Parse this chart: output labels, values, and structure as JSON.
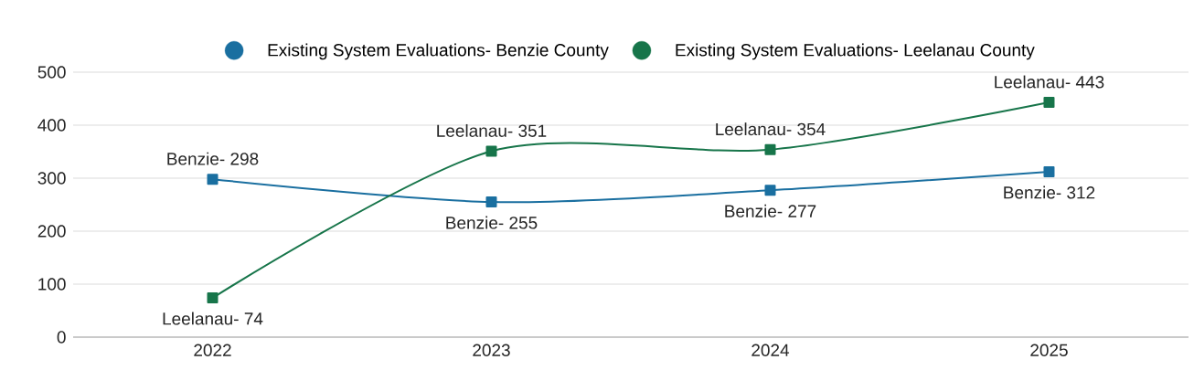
{
  "chart_data": {
    "type": "line",
    "categories": [
      "2022",
      "2023",
      "2024",
      "2025"
    ],
    "series": [
      {
        "name": "Existing System Evaluations- Benzie County",
        "color": "#1a6fa0",
        "values": [
          298,
          255,
          277,
          312
        ],
        "value_labels": [
          "Benzie- 298",
          "Benzie- 255",
          "Benzie- 277",
          "Benzie- 312"
        ]
      },
      {
        "name": "Existing System Evaluations- Leelanau County",
        "color": "#17754a",
        "values": [
          74,
          351,
          354,
          443
        ],
        "value_labels": [
          "Leelanau- 74",
          "Leelanau- 351",
          "Leelanau- 354",
          "Leelanau- 443"
        ]
      }
    ],
    "ylim": [
      0,
      500
    ],
    "yticks": [
      0,
      100,
      200,
      300,
      400,
      500
    ],
    "grid": "y",
    "legend": "top",
    "marker": "square"
  }
}
